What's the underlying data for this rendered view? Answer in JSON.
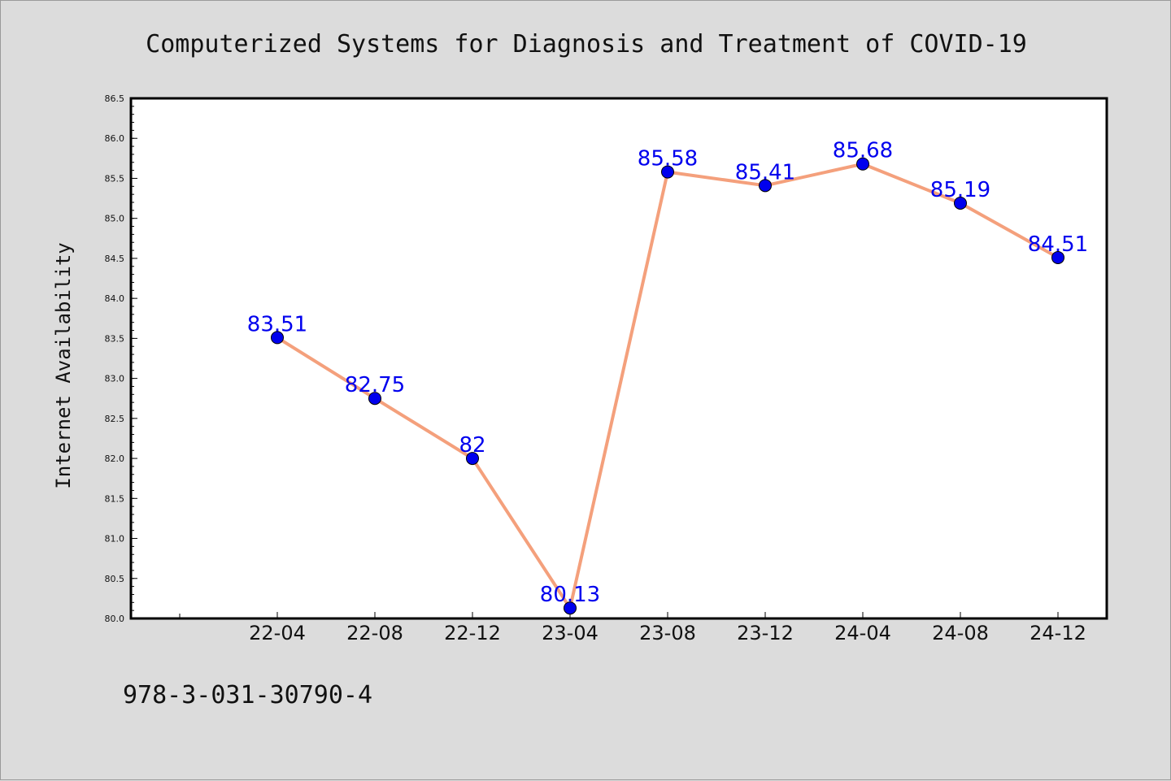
{
  "chart_data": {
    "type": "line",
    "title": "Computerized Systems for Diagnosis and Treatment of COVID-19",
    "xlabel": "",
    "ylabel": "Internet Availability",
    "categories": [
      "22-04",
      "22-08",
      "22-12",
      "23-04",
      "23-08",
      "23-12",
      "24-04",
      "24-08",
      "24-12"
    ],
    "series": [
      {
        "values": [
          83.51,
          82.75,
          82,
          80.13,
          85.58,
          85.41,
          85.68,
          85.19,
          84.51
        ],
        "data_labels": [
          "83.51",
          "82.75",
          "82",
          "80.13",
          "85.58",
          "85.41",
          "85.68",
          "85.19",
          "84.51"
        ],
        "line_color": "#f4a07c",
        "marker_color": "#0000ee",
        "label_color": "#0000ee"
      }
    ],
    "ylim": [
      80.0,
      86.5
    ],
    "yticks": [
      "80.0",
      "80.5",
      "81.0",
      "81.5",
      "82.0",
      "82.5",
      "83.0",
      "83.5",
      "84.0",
      "84.5",
      "85.0",
      "85.5",
      "86.0",
      "86.5"
    ],
    "grid": false,
    "legend": "none"
  },
  "footnote": "978-3-031-30790-4"
}
